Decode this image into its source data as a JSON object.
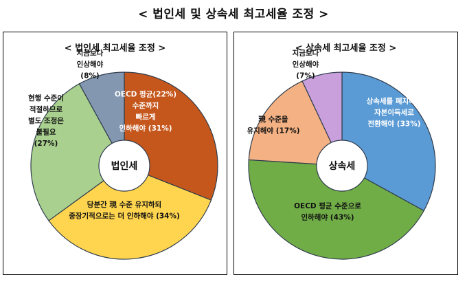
{
  "title": "< 법인세 및 상속세 최고세율 조정 >",
  "chart_data": [
    {
      "type": "pie",
      "title": "< 법인세 최고세율 조정 >",
      "center_label": "법인세",
      "series": [
        {
          "name": "OECD 평균(22%) 수준까지 빠르게 인하해야",
          "value": 31,
          "value_label": "(31%)",
          "color": "#c5571c",
          "lines": [
            "OECD 평균(22%)",
            "수준까지",
            "빠르게",
            "인하해야 (31%)"
          ]
        },
        {
          "name": "당분간 現 수준 유지하되 중장기적으로는 더 인하해야",
          "value": 34,
          "value_label": "(34%)",
          "color": "#ffd54f",
          "lines": [
            "당분간 現 수준 유지하되",
            "중장기적으로는 더 인하해야 (34%)"
          ]
        },
        {
          "name": "현행 수준이 적절하므로 별도 조정은 불필요",
          "value": 27,
          "value_label": "(27%)",
          "color": "#a9d08e",
          "lines": [
            "현행 수준이",
            "적절하므로",
            "별도 조정은",
            "불필요",
            "(27%)"
          ]
        },
        {
          "name": "지금보다 인상해야",
          "value": 8,
          "value_label": "(8%)",
          "color": "#8497b0",
          "lines": [
            "지금보다",
            "인상해야",
            "(8%)"
          ]
        }
      ]
    },
    {
      "type": "pie",
      "title": "< 상속세 최고세율 조정 >",
      "center_label": "상속세",
      "series": [
        {
          "name": "상속세를 폐지하고 자본이득세로 전환해야",
          "value": 33,
          "value_label": "(33%)",
          "color": "#5b9bd5",
          "lines": [
            "상속세를 폐지하고",
            "자본이득세로",
            "전환해야 (33%)"
          ]
        },
        {
          "name": "OECD 평균 수준으로 인하해야",
          "value": 43,
          "value_label": "(43%)",
          "color": "#70ad47",
          "lines": [
            "OECD 평균 수준으로",
            "인하해야 (43%)"
          ]
        },
        {
          "name": "現 수준을 유지해야",
          "value": 17,
          "value_label": "(17%)",
          "color": "#f4b183",
          "lines": [
            "現 수준을",
            "유지해야 (17%)"
          ]
        },
        {
          "name": "지금보다 인상해야",
          "value": 7,
          "value_label": "(7%)",
          "color": "#c9a0dc",
          "lines": [
            "지금보다",
            "인상해야",
            "(7%)"
          ]
        }
      ]
    }
  ]
}
